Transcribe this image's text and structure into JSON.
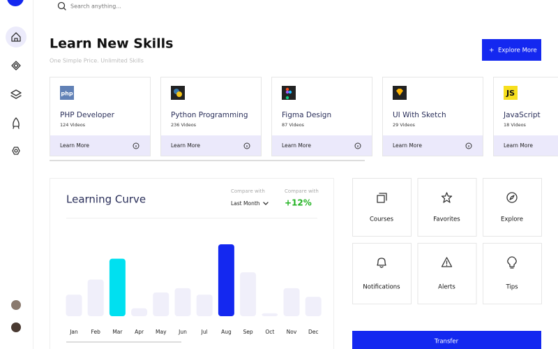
{
  "search": {
    "placeholder": "Search anything..."
  },
  "header": {
    "title": "Learn New Skills",
    "subtitle": "One Simple Price. Unlimited Skills",
    "button": "Explore More"
  },
  "courses": [
    {
      "icon": "php",
      "title": "PHP Developer",
      "count": "124 Videos",
      "action": "Learn More"
    },
    {
      "title": "Python Programming",
      "count": "236 Videos",
      "action": "Learn More"
    },
    {
      "title": "Figma Design",
      "count": "87 Videos",
      "action": "Learn More"
    },
    {
      "title": "UI With Sketch",
      "count": "29 Videos",
      "action": "Learn More"
    },
    {
      "icon": "JS",
      "title": "JavaScript",
      "count": "18 Videos",
      "action": "Learn More"
    }
  ],
  "chart_data": {
    "type": "bar",
    "title": "Learning Curve",
    "categories": [
      "Jan",
      "Feb",
      "Mar",
      "Apr",
      "May",
      "Jun",
      "Jul",
      "Aug",
      "Sep",
      "Oct",
      "Nov",
      "Dec"
    ],
    "values": [
      30,
      51,
      80,
      11,
      33,
      39,
      30,
      100,
      61,
      4,
      39,
      27
    ],
    "colors": [
      "#f0effa",
      "#f0effa",
      "#00e0f0",
      "#f0effa",
      "#f0effa",
      "#f0effa",
      "#f0effa",
      "#1428f0",
      "#f0effa",
      "#f0effa",
      "#f0effa",
      "#f0effa"
    ]
  },
  "compare": [
    {
      "label": "Compare with",
      "value": "Last Month"
    },
    {
      "label": "Compare with",
      "value": "+12%"
    }
  ],
  "tiles": [
    "Courses",
    "Favorites",
    "Explore",
    "Notifications",
    "Alerts",
    "Tips"
  ],
  "transfer": "Transfer"
}
